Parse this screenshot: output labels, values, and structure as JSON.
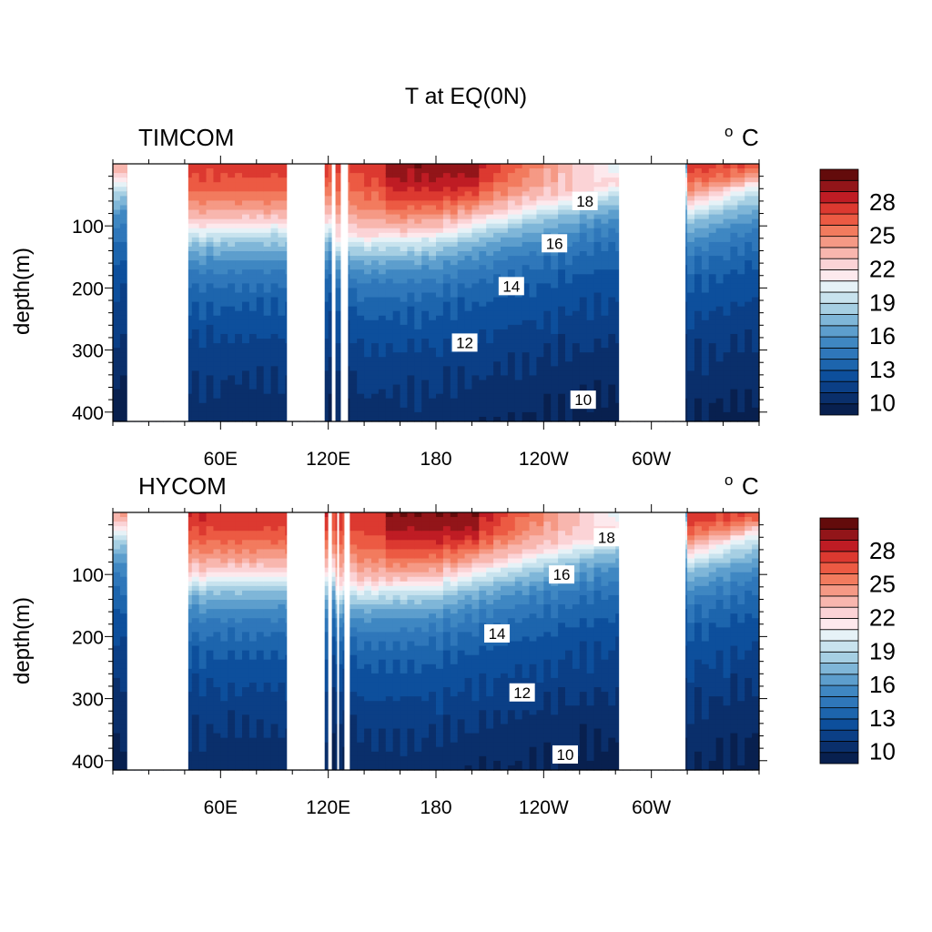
{
  "figure": {
    "title": "T at EQ(0N)"
  },
  "chart_data": [
    {
      "type": "heatmap",
      "panel_label": "TIMCOM",
      "units": "o C",
      "units_sup": "o",
      "units_main": "C",
      "ylabel": "depth(m)",
      "ylim": [
        0,
        415
      ],
      "y_reversed": true,
      "y_ticks": [
        100,
        200,
        300,
        400
      ],
      "x_ticks": [
        {
          "lon": 60,
          "label": "60E"
        },
        {
          "lon": 120,
          "label": "120E"
        },
        {
          "lon": 180,
          "label": "180"
        },
        {
          "lon": 240,
          "label": "120W"
        },
        {
          "lon": 300,
          "label": "60W"
        }
      ],
      "xlim": [
        0,
        360
      ],
      "colorbar": {
        "levels": [
          9,
          10,
          11,
          12,
          13,
          14,
          15,
          16,
          17,
          18,
          19,
          20,
          21,
          22,
          23,
          24,
          25,
          26,
          27,
          28,
          29,
          30
        ],
        "colors": [
          "#08204f",
          "#0a2f6b",
          "#0b3f86",
          "#0d4f9c",
          "#1d65ad",
          "#2f77ba",
          "#3f87c2",
          "#5d9ecd",
          "#7fb6d8",
          "#a6cfe3",
          "#c8e3ee",
          "#e6f2f7",
          "#fde9ed",
          "#fbd3d6",
          "#f8b6ae",
          "#f59985",
          "#f27b5e",
          "#ec5a43",
          "#dc3930",
          "#bf1c24",
          "#921519",
          "#630b0b"
        ],
        "labels": [
          "10",
          "13",
          "16",
          "19",
          "22",
          "25",
          "28"
        ],
        "label_levels": [
          10,
          13,
          16,
          19,
          22,
          25,
          28
        ]
      },
      "contour_labels": [
        {
          "value": "18",
          "lon": 263,
          "depth": 60
        },
        {
          "value": "16",
          "lon": 246,
          "depth": 128
        },
        {
          "value": "14",
          "lon": 222,
          "depth": 197
        },
        {
          "value": "12",
          "lon": 196,
          "depth": 288
        },
        {
          "value": "10",
          "lon": 262,
          "depth": 380
        }
      ],
      "land_gaps_lon": [
        [
          8,
          42
        ],
        [
          97,
          118
        ],
        [
          122,
          124
        ],
        [
          127,
          131
        ],
        [
          282,
          319
        ]
      ]
    },
    {
      "type": "heatmap",
      "panel_label": "HYCOM",
      "units": "o C",
      "units_sup": "o",
      "units_main": "C",
      "ylabel": "depth(m)",
      "ylim": [
        0,
        415
      ],
      "y_reversed": true,
      "y_ticks": [
        100,
        200,
        300,
        400
      ],
      "x_ticks": [
        {
          "lon": 60,
          "label": "60E"
        },
        {
          "lon": 120,
          "label": "120E"
        },
        {
          "lon": 180,
          "label": "180"
        },
        {
          "lon": 240,
          "label": "120W"
        },
        {
          "lon": 300,
          "label": "60W"
        }
      ],
      "xlim": [
        0,
        360
      ],
      "colorbar": {
        "levels": [
          9,
          10,
          11,
          12,
          13,
          14,
          15,
          16,
          17,
          18,
          19,
          20,
          21,
          22,
          23,
          24,
          25,
          26,
          27,
          28,
          29,
          30
        ],
        "colors": [
          "#08204f",
          "#0a2f6b",
          "#0b3f86",
          "#0d4f9c",
          "#1d65ad",
          "#2f77ba",
          "#3f87c2",
          "#5d9ecd",
          "#7fb6d8",
          "#a6cfe3",
          "#c8e3ee",
          "#e6f2f7",
          "#fde9ed",
          "#fbd3d6",
          "#f8b6ae",
          "#f59985",
          "#f27b5e",
          "#ec5a43",
          "#dc3930",
          "#bf1c24",
          "#921519",
          "#630b0b"
        ],
        "labels": [
          "10",
          "13",
          "16",
          "19",
          "22",
          "25",
          "28"
        ],
        "label_levels": [
          10,
          13,
          16,
          19,
          22,
          25,
          28
        ]
      },
      "contour_labels": [
        {
          "value": "18",
          "lon": 275,
          "depth": 40
        },
        {
          "value": "16",
          "lon": 250,
          "depth": 100
        },
        {
          "value": "14",
          "lon": 214,
          "depth": 195
        },
        {
          "value": "12",
          "lon": 228,
          "depth": 290
        },
        {
          "value": "10",
          "lon": 252,
          "depth": 390
        }
      ],
      "land_gaps_lon": [
        [
          8,
          42
        ],
        [
          97,
          118
        ],
        [
          120,
          122
        ],
        [
          125,
          126
        ],
        [
          129,
          132
        ],
        [
          282,
          319
        ]
      ]
    }
  ]
}
